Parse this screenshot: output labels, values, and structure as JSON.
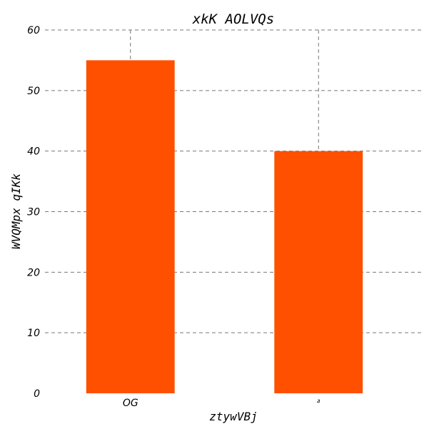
{
  "chart_data": {
    "type": "bar",
    "title": "xkK AOLVQs",
    "xlabel": "ztywVBj",
    "ylabel": "WVQMpx qIKk",
    "categories": [
      "OG",
      "ꬿ"
    ],
    "values": [
      55,
      40
    ],
    "ylim": [
      0,
      60
    ],
    "yticks": [
      0,
      10,
      20,
      30,
      40,
      50,
      60
    ],
    "grid": true,
    "colors": {
      "bar": "#ff5000",
      "grid": "#777777"
    }
  }
}
